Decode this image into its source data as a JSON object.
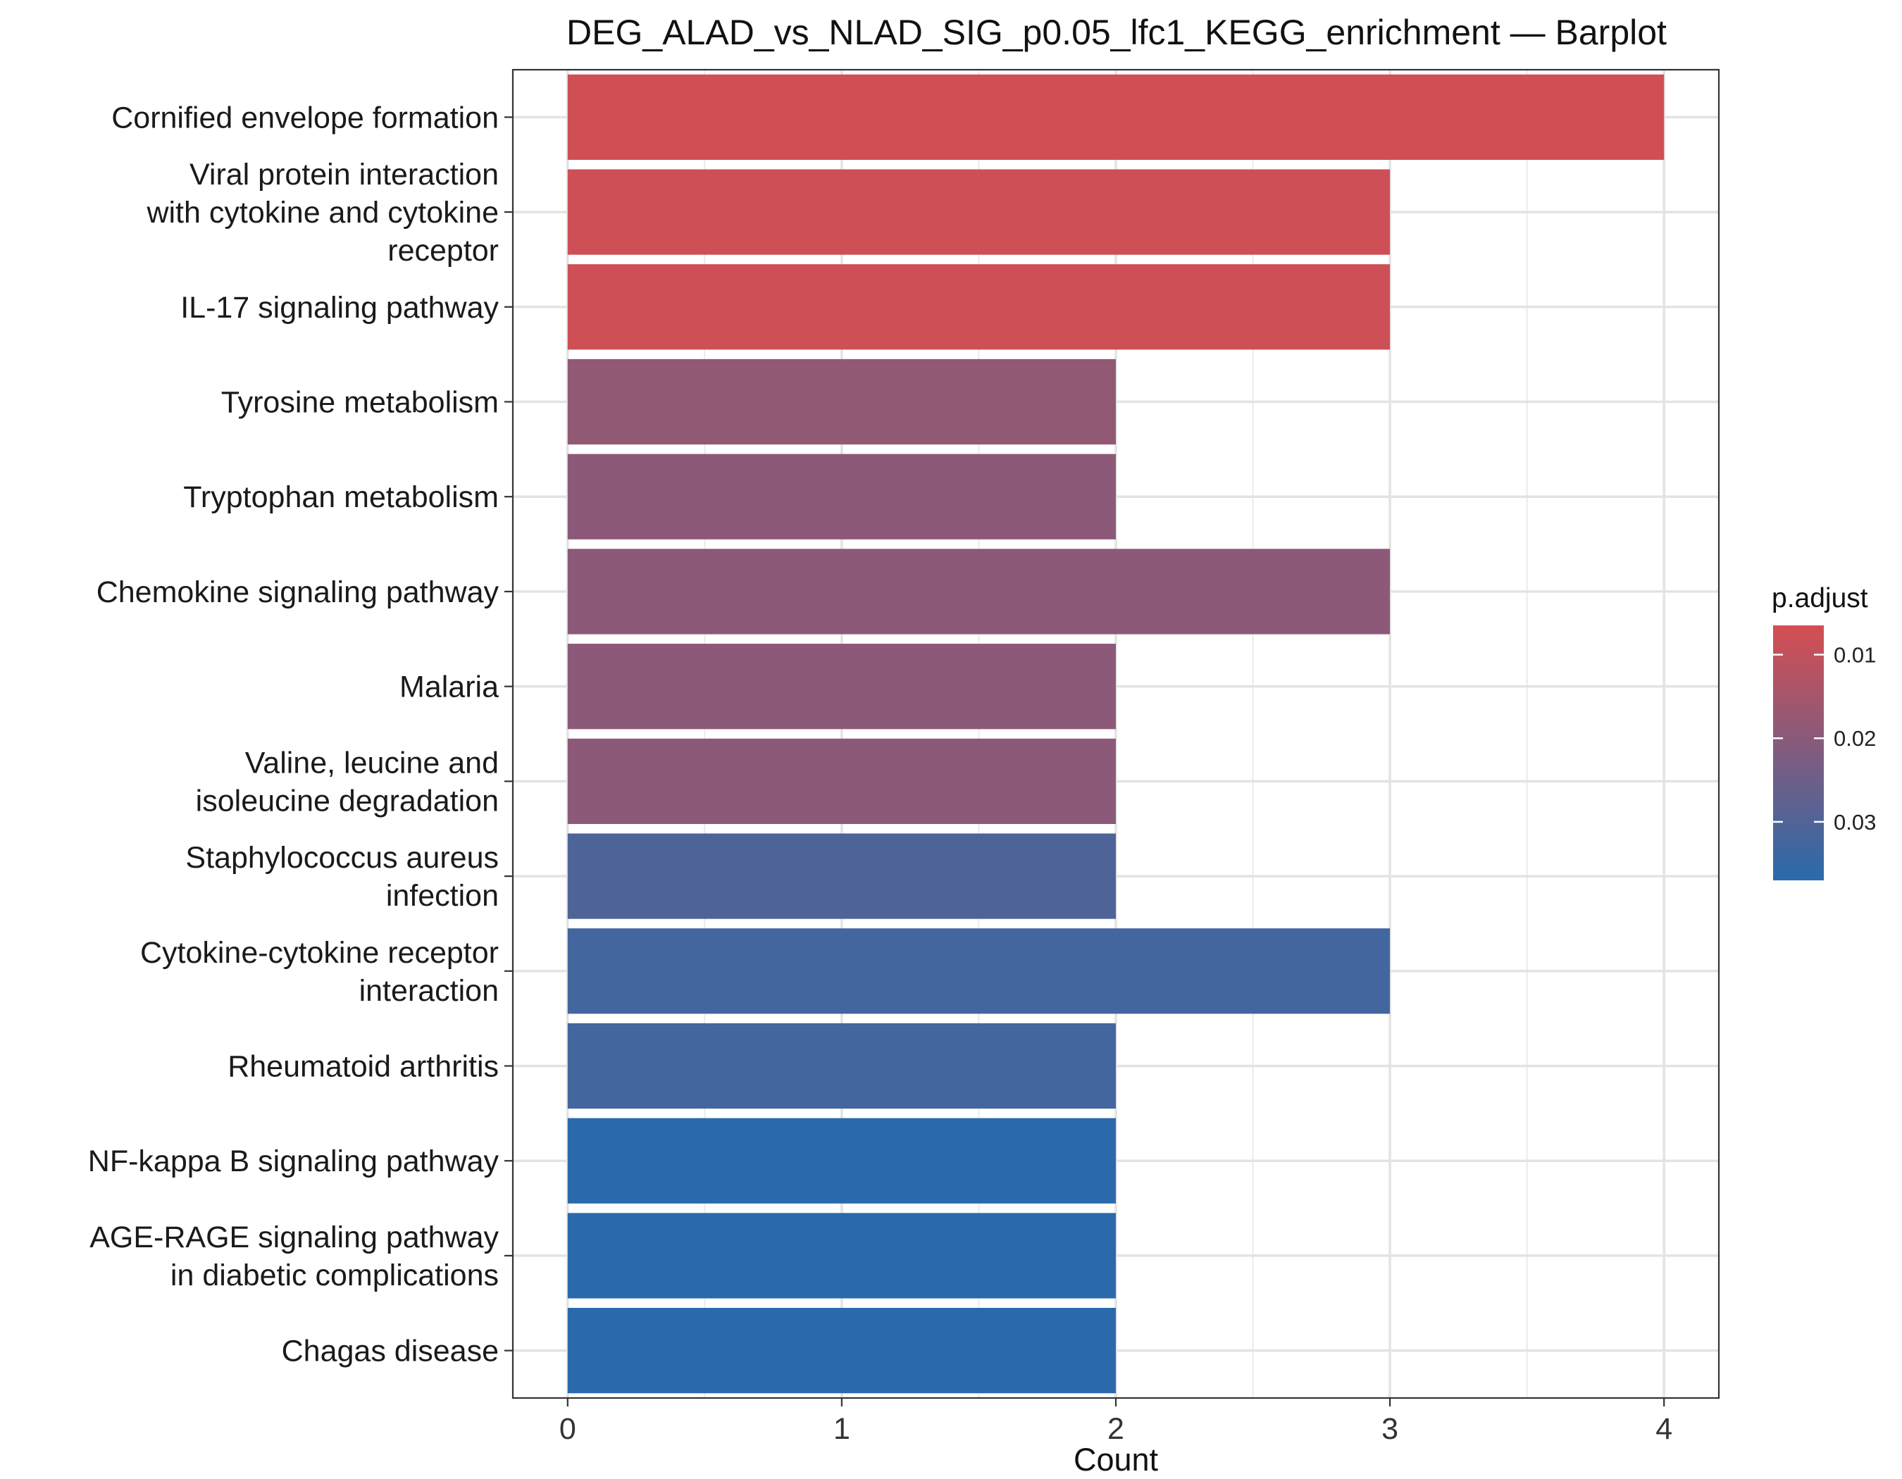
{
  "chart_data": {
    "type": "bar",
    "orientation": "horizontal",
    "title": "DEG_ALAD_vs_NLAD_SIG_p0.05_lfc1_KEGG_enrichment — Barplot",
    "xlabel": "Count",
    "ylabel": "",
    "xlim": [
      -0.2,
      4.2
    ],
    "x_ticks": [
      0,
      1,
      2,
      3,
      4
    ],
    "grid": true,
    "categories": [
      [
        "Cornified envelope formation"
      ],
      [
        "Viral protein interaction",
        "with cytokine and cytokine",
        "receptor"
      ],
      [
        "IL-17 signaling pathway"
      ],
      [
        "Tyrosine metabolism"
      ],
      [
        "Tryptophan metabolism"
      ],
      [
        "Chemokine signaling pathway"
      ],
      [
        "Malaria"
      ],
      [
        "Valine, leucine and",
        "isoleucine degradation"
      ],
      [
        "Staphylococcus aureus",
        "infection"
      ],
      [
        "Cytokine-cytokine receptor",
        "interaction"
      ],
      [
        "Rheumatoid arthritis"
      ],
      [
        "NF-kappa B signaling pathway"
      ],
      [
        "AGE-RAGE signaling pathway",
        "in diabetic complications"
      ],
      [
        "Chagas disease"
      ]
    ],
    "values": [
      4,
      3,
      3,
      2,
      2,
      3,
      2,
      2,
      2,
      3,
      2,
      2,
      2,
      2
    ],
    "p_adjust": [
      0.0075,
      0.0078,
      0.0078,
      0.0185,
      0.0195,
      0.0195,
      0.0195,
      0.0195,
      0.0305,
      0.0325,
      0.0325,
      0.037,
      0.037,
      0.037
    ],
    "legend": {
      "title": "p.adjust",
      "placement": "right",
      "range": [
        0.0065,
        0.037
      ],
      "ticks": [
        0.01,
        0.02,
        0.03
      ],
      "tick_labels": [
        "0.01",
        "0.02",
        "0.03"
      ],
      "color_low": "#d54e52",
      "color_high": "#2a6aac"
    }
  }
}
